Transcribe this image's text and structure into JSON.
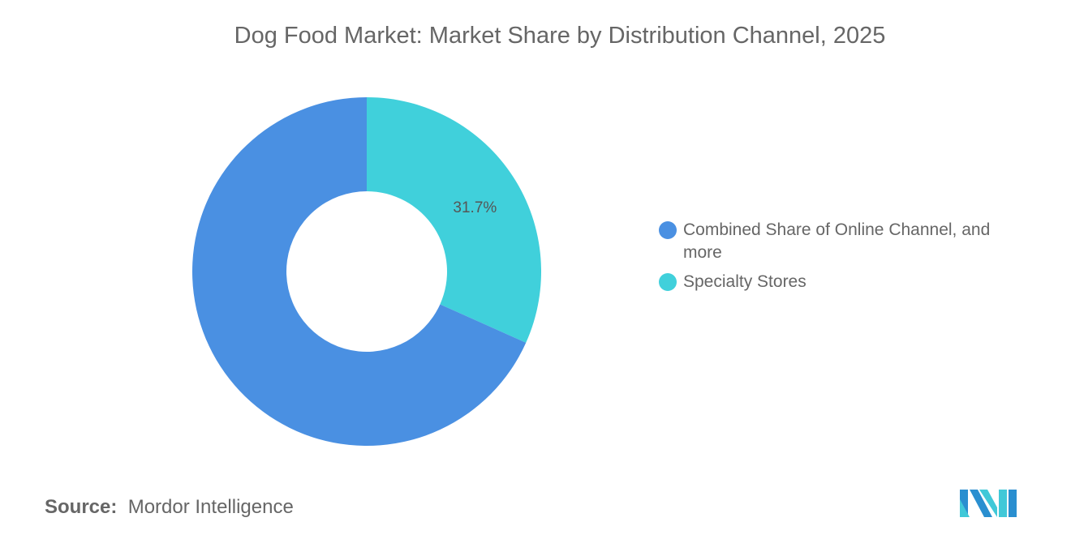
{
  "chart_data": {
    "type": "pie",
    "donut": true,
    "title": "Dog Food Market: Market Share by Distribution Channel, 2025",
    "slices": [
      {
        "label": "Specialty Stores",
        "value": 31.7,
        "color": "#40D0DB",
        "data_label": "31.7%"
      },
      {
        "label": "Combined Share of Online Channel, and more",
        "value": 68.3,
        "color": "#4A90E2",
        "data_label": ""
      }
    ],
    "legend_placement": "right",
    "legend": [
      {
        "label": "Combined Share of Online Channel, and more",
        "color": "#4A90E2"
      },
      {
        "label": "Specialty Stores",
        "color": "#40D0DB"
      }
    ]
  },
  "source": {
    "prefix": "Source:",
    "text": "Mordor Intelligence"
  },
  "logo": {
    "name": "mordor-intelligence-logo",
    "text": "Mordor Intelligence"
  }
}
